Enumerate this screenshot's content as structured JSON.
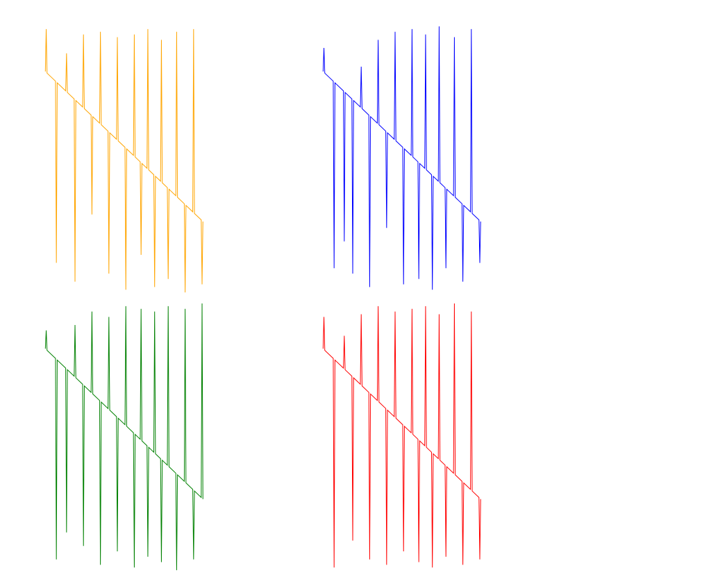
{
  "chart_data": [
    {
      "type": "line",
      "color": "#ffa500",
      "xlim": [
        0,
        100
      ],
      "ylim": [
        0,
        100
      ],
      "x": [
        3,
        3.5,
        4,
        9,
        9.5,
        10,
        15,
        15.5,
        16,
        20,
        20.5,
        21,
        25,
        25.5,
        26,
        30,
        30.5,
        31,
        35,
        35.5,
        36,
        40,
        40.5,
        41,
        45,
        45.5,
        46,
        50,
        50.5,
        51,
        55,
        55.5,
        56,
        59,
        59.5,
        60,
        63,
        63.5,
        64,
        67,
        67.5,
        68,
        71,
        71.5,
        72,
        75,
        75.5,
        76,
        80,
        80.5,
        81,
        85,
        85.5,
        86,
        90,
        90.5,
        91,
        95,
        95.5,
        96
      ],
      "values": [
        83.2,
        99,
        82.6,
        79.6,
        12,
        79,
        76,
        90,
        75.4,
        73,
        5,
        72.4,
        70,
        97,
        69.4,
        67,
        30,
        66.4,
        64,
        98,
        63.4,
        61,
        8,
        60.4,
        58,
        96,
        57.4,
        55,
        2,
        54.4,
        52,
        97,
        51.4,
        49.6,
        15,
        49,
        47.2,
        99,
        46.6,
        44.8,
        3,
        44.2,
        42.4,
        95,
        41.8,
        40,
        6,
        39.4,
        37,
        98,
        36.4,
        34,
        1,
        33.4,
        31,
        99,
        30.4,
        28,
        4,
        27.4
      ]
    },
    {
      "type": "line",
      "color": "#0000ff",
      "xlim": [
        0,
        100
      ],
      "ylim": [
        0,
        100
      ],
      "x": [
        3,
        3.5,
        4,
        9,
        9.5,
        10,
        15,
        15.5,
        16,
        20,
        20.5,
        21,
        25,
        25.5,
        26,
        30,
        30.5,
        31,
        35,
        35.5,
        36,
        40,
        40.5,
        41,
        45,
        45.5,
        46,
        50,
        50.5,
        51,
        55,
        55.5,
        56,
        59,
        59.5,
        60,
        63,
        63.5,
        64,
        67,
        67.5,
        68,
        71,
        71.5,
        72,
        75,
        75.5,
        76,
        80,
        80.5,
        81,
        85,
        85.5,
        86,
        90,
        90.5,
        91,
        95,
        95.5,
        96
      ],
      "values": [
        83.2,
        92,
        82.6,
        79.6,
        10,
        79,
        76,
        20,
        75.4,
        73,
        8,
        72.4,
        70,
        85,
        69.4,
        67,
        3,
        66.4,
        64,
        95,
        63.4,
        61,
        25,
        60.4,
        58,
        98,
        57.4,
        55,
        4,
        54.4,
        52,
        99,
        51.4,
        49.6,
        6,
        49,
        47.2,
        97,
        46.6,
        44.8,
        2,
        44.2,
        42.4,
        100,
        41.8,
        40,
        10,
        39.4,
        37,
        96,
        36.4,
        34,
        5,
        33.4,
        31,
        99,
        30.4,
        28,
        12,
        27.4
      ]
    },
    {
      "type": "line",
      "color": "#008000",
      "xlim": [
        0,
        100
      ],
      "ylim": [
        0,
        100
      ],
      "x": [
        3,
        3.5,
        4,
        9,
        9.5,
        10,
        15,
        15.5,
        16,
        20,
        20.5,
        21,
        25,
        25.5,
        26,
        30,
        30.5,
        31,
        35,
        35.5,
        36,
        40,
        40.5,
        41,
        45,
        45.5,
        46,
        50,
        50.5,
        51,
        55,
        55.5,
        56,
        59,
        59.5,
        60,
        63,
        63.5,
        64,
        67,
        67.5,
        68,
        71,
        71.5,
        72,
        75,
        75.5,
        76,
        80,
        80.5,
        81,
        85,
        85.5,
        86,
        90,
        90.5,
        91,
        95,
        95.5,
        96
      ],
      "values": [
        83.2,
        90,
        82.6,
        79.6,
        5,
        79,
        76,
        15,
        75.4,
        73,
        92,
        72.4,
        70,
        10,
        69.4,
        67,
        97,
        66.4,
        64,
        3,
        63.4,
        61,
        95,
        60.4,
        58,
        8,
        57.4,
        55,
        99,
        54.4,
        52,
        2,
        51.4,
        49.6,
        98,
        49,
        47.2,
        6,
        46.6,
        44.8,
        97,
        44.2,
        42.4,
        4,
        41.8,
        40,
        99,
        39.4,
        37,
        1,
        36.4,
        34,
        98,
        33.4,
        31,
        5,
        30.4,
        28,
        100,
        27.4
      ]
    },
    {
      "type": "line",
      "color": "#ff0000",
      "xlim": [
        0,
        100
      ],
      "ylim": [
        0,
        100
      ],
      "x": [
        3,
        3.5,
        4,
        9,
        9.5,
        10,
        15,
        15.5,
        16,
        20,
        20.5,
        21,
        25,
        25.5,
        26,
        30,
        30.5,
        31,
        35,
        35.5,
        36,
        40,
        40.5,
        41,
        45,
        45.5,
        46,
        50,
        50.5,
        51,
        55,
        55.5,
        56,
        59,
        59.5,
        60,
        63,
        63.5,
        64,
        67,
        67.5,
        68,
        71,
        71.5,
        72,
        75,
        75.5,
        76,
        80,
        80.5,
        81,
        85,
        85.5,
        86,
        90,
        90.5,
        91,
        95,
        95.5,
        96
      ],
      "values": [
        83.2,
        95,
        82.6,
        79.6,
        2,
        79,
        76,
        88,
        75.4,
        73,
        12,
        72.4,
        70,
        96,
        69.4,
        67,
        5,
        66.4,
        64,
        99,
        63.4,
        61,
        3,
        60.4,
        58,
        97,
        57.4,
        55,
        8,
        54.4,
        52,
        98,
        51.4,
        49.6,
        4,
        49,
        47.2,
        99,
        46.6,
        44.8,
        2,
        44.2,
        42.4,
        96,
        41.8,
        40,
        6,
        39.4,
        37,
        100,
        36.4,
        34,
        3,
        33.4,
        31,
        97,
        30.4,
        28,
        5,
        27.4
      ]
    }
  ]
}
